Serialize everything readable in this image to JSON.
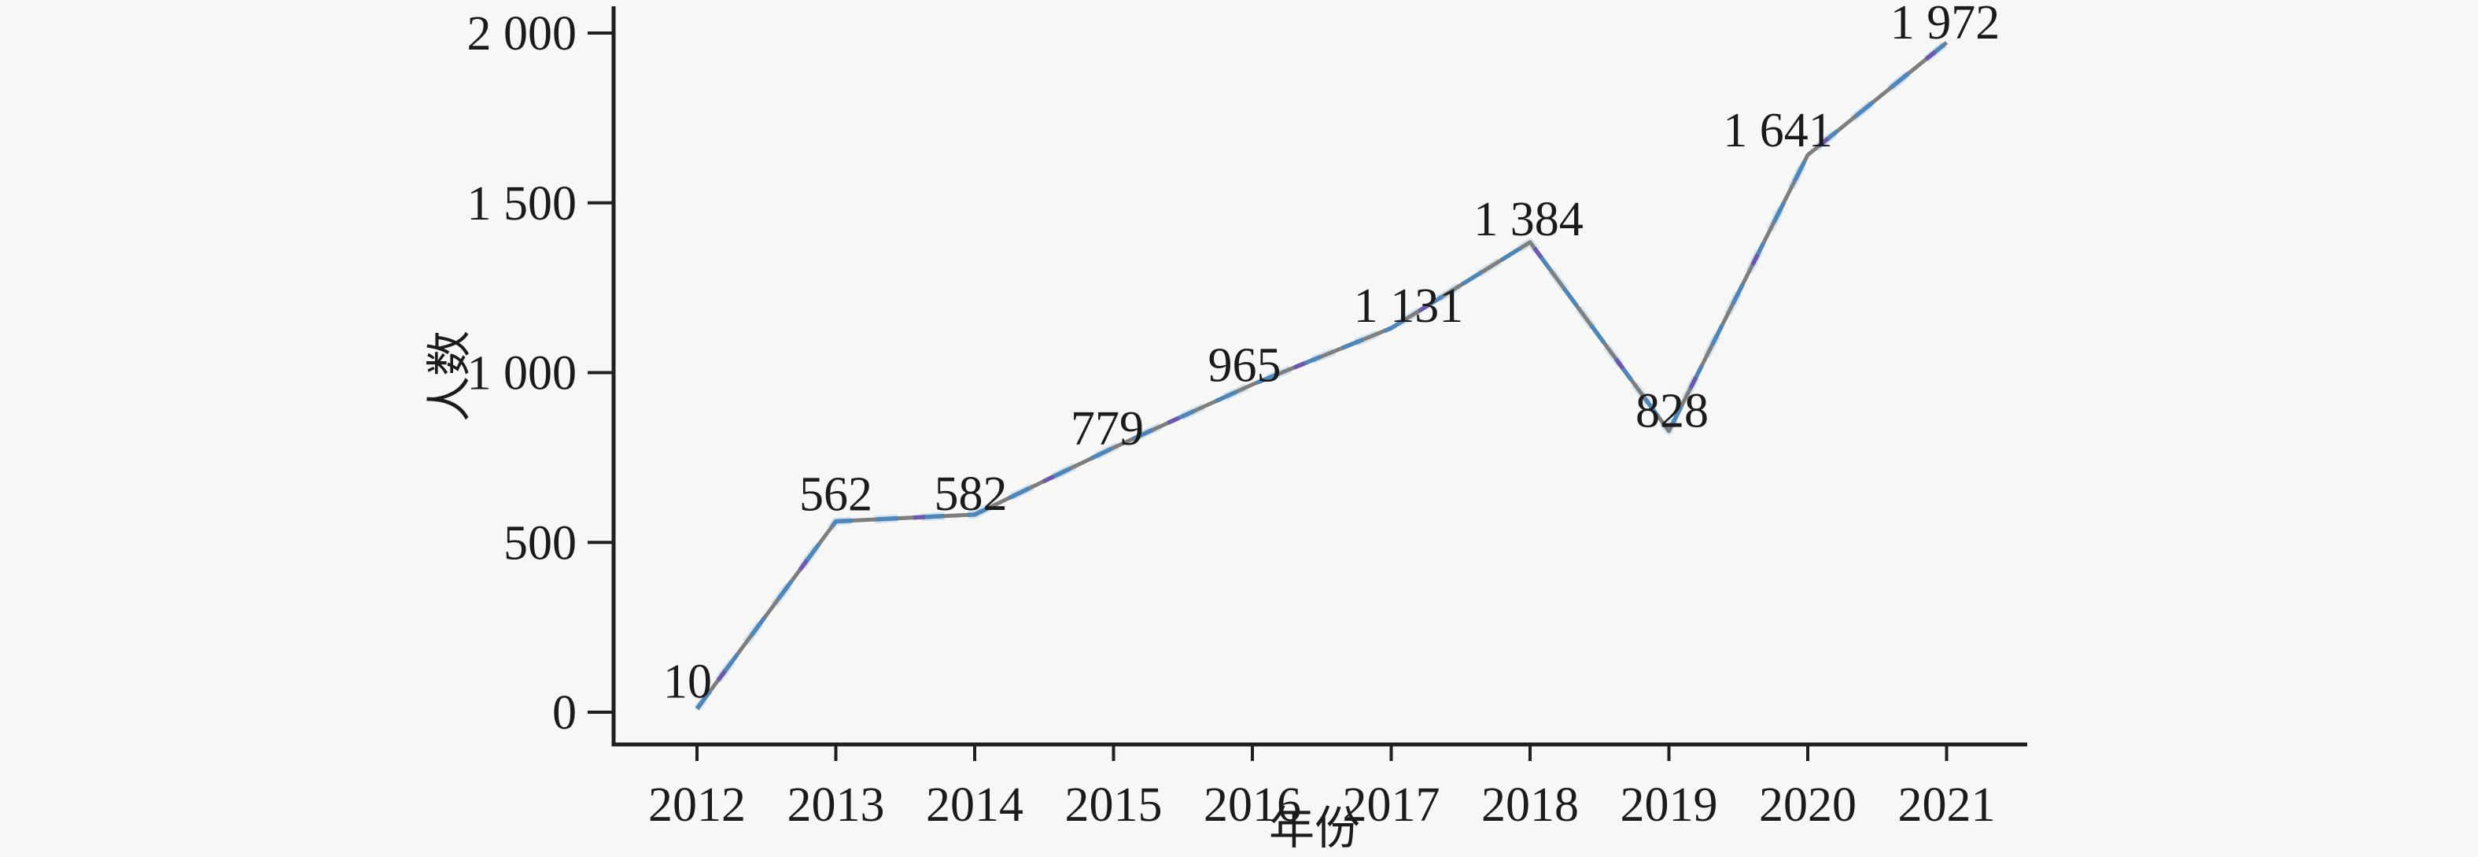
{
  "page": {
    "background": "#f7f7f6"
  },
  "chart_data": {
    "type": "line",
    "title": "",
    "xlabel": "年份",
    "ylabel": "人数",
    "categories": [
      "2012",
      "2013",
      "2014",
      "2015",
      "2016",
      "2017",
      "2018",
      "2019",
      "2020",
      "2021"
    ],
    "series": [
      {
        "name": "人数",
        "values": [
          10,
          562,
          582,
          779,
          965,
          1131,
          1384,
          828,
          1641,
          1972
        ]
      }
    ],
    "point_labels": [
      "10",
      "562",
      "582",
      "779",
      "965",
      "1 131",
      "1 384",
      "828",
      "1 641",
      "1 972"
    ],
    "yticks": {
      "values": [
        0,
        500,
        1000,
        1500,
        2000
      ],
      "labels": [
        "0",
        "500",
        "1 000",
        "1 500",
        "2 000"
      ]
    },
    "ylim": [
      0,
      2000
    ],
    "grid": false,
    "legend": "none",
    "line_style": "overlapping-dashed",
    "colors": {
      "grey_line": "#7e7e7e",
      "blue_dash": "#4f86b8",
      "purple_dash": "#6e58ad",
      "pale_blue_halo": "#b7d3ea",
      "axis": "#1f1f1f",
      "text": "#1b1b1b"
    }
  }
}
